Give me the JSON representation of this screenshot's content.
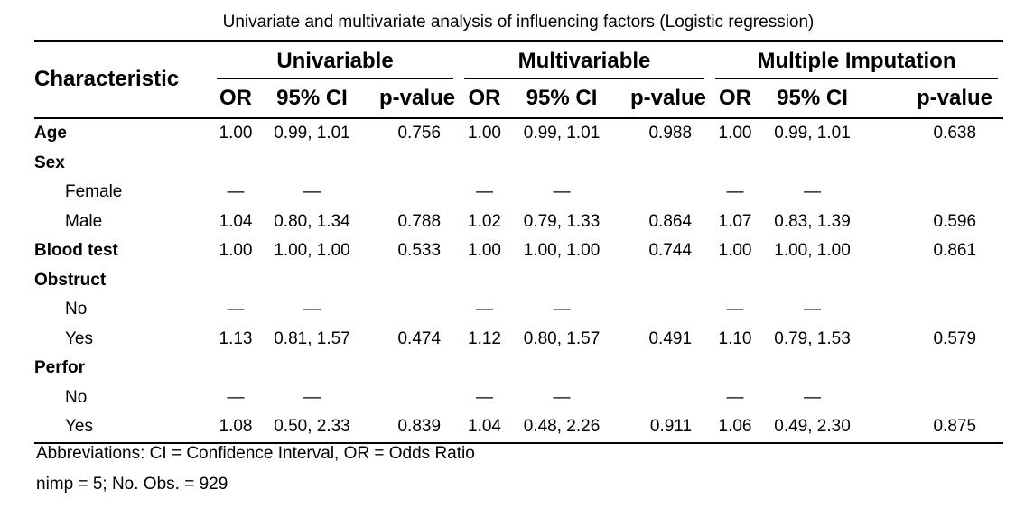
{
  "caption": "Univariate and multivariate analysis of influencing factors (Logistic regression)",
  "header": {
    "characteristic": "Characteristic",
    "groups": [
      "Univariable",
      "Multivariable",
      "Multiple Imputation"
    ],
    "columns": [
      "OR",
      "95% CI",
      "p-value"
    ]
  },
  "rows": [
    {
      "label": "Age",
      "style": "bold",
      "cells": [
        "1.00",
        "0.99, 1.01",
        "0.756",
        "1.00",
        "0.99, 1.01",
        "0.988",
        "1.00",
        "0.99, 1.01",
        "0.638"
      ]
    },
    {
      "label": "Sex",
      "style": "bold",
      "cells": [
        "",
        "",
        "",
        "",
        "",
        "",
        "",
        "",
        ""
      ]
    },
    {
      "label": "Female",
      "style": "indent",
      "cells": [
        "—",
        "—",
        "",
        "—",
        "—",
        "",
        "—",
        "—",
        ""
      ]
    },
    {
      "label": "Male",
      "style": "indent",
      "cells": [
        "1.04",
        "0.80, 1.34",
        "0.788",
        "1.02",
        "0.79, 1.33",
        "0.864",
        "1.07",
        "0.83, 1.39",
        "0.596"
      ]
    },
    {
      "label": "Blood test",
      "style": "bold",
      "cells": [
        "1.00",
        "1.00, 1.00",
        "0.533",
        "1.00",
        "1.00, 1.00",
        "0.744",
        "1.00",
        "1.00, 1.00",
        "0.861"
      ]
    },
    {
      "label": "Obstruct",
      "style": "bold",
      "cells": [
        "",
        "",
        "",
        "",
        "",
        "",
        "",
        "",
        ""
      ]
    },
    {
      "label": "No",
      "style": "indent",
      "cells": [
        "—",
        "—",
        "",
        "—",
        "—",
        "",
        "—",
        "—",
        ""
      ]
    },
    {
      "label": "Yes",
      "style": "indent",
      "cells": [
        "1.13",
        "0.81, 1.57",
        "0.474",
        "1.12",
        "0.80, 1.57",
        "0.491",
        "1.10",
        "0.79, 1.53",
        "0.579"
      ]
    },
    {
      "label": "Perfor",
      "style": "bold",
      "cells": [
        "",
        "",
        "",
        "",
        "",
        "",
        "",
        "",
        ""
      ]
    },
    {
      "label": "No",
      "style": "indent",
      "cells": [
        "—",
        "—",
        "",
        "—",
        "—",
        "",
        "—",
        "—",
        ""
      ]
    },
    {
      "label": "Yes",
      "style": "indent",
      "cells": [
        "1.08",
        "0.50, 2.33",
        "0.839",
        "1.04",
        "0.48, 2.26",
        "0.911",
        "1.06",
        "0.49, 2.30",
        "0.875"
      ]
    }
  ],
  "footnotes": [
    "Abbreviations: CI = Confidence Interval, OR = Odds Ratio",
    "nimp = 5; No. Obs. = 929"
  ]
}
